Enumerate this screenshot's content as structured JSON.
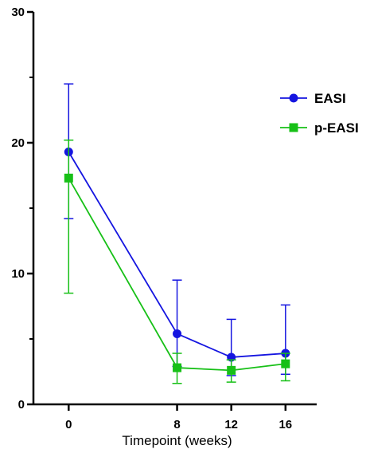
{
  "chart_data": {
    "type": "line",
    "x": [
      0,
      8,
      12,
      16
    ],
    "xticks": [
      "0",
      "8",
      "12",
      "16"
    ],
    "xlabel": "Timepoint (weeks)",
    "ylabel": "",
    "xlim": [
      -2.6,
      18.3
    ],
    "ylim": [
      0,
      30
    ],
    "yticks": [
      "0",
      "10",
      "20",
      "30"
    ],
    "grid": false,
    "legend_position": "top-right",
    "series": [
      {
        "name": "EASI",
        "color": "#1515e0",
        "marker": "circle",
        "values": [
          19.3,
          5.4,
          3.6,
          3.9
        ],
        "err_upper": [
          24.5,
          9.5,
          6.5,
          7.6
        ],
        "err_lower": [
          14.2,
          2.9,
          2.2,
          2.3
        ]
      },
      {
        "name": "p-EASI",
        "color": "#17c017",
        "marker": "square",
        "values": [
          17.3,
          2.8,
          2.6,
          3.1
        ],
        "err_upper": [
          20.2,
          3.9,
          3.4,
          3.9
        ],
        "err_lower": [
          8.5,
          1.6,
          1.7,
          1.8
        ]
      }
    ]
  }
}
